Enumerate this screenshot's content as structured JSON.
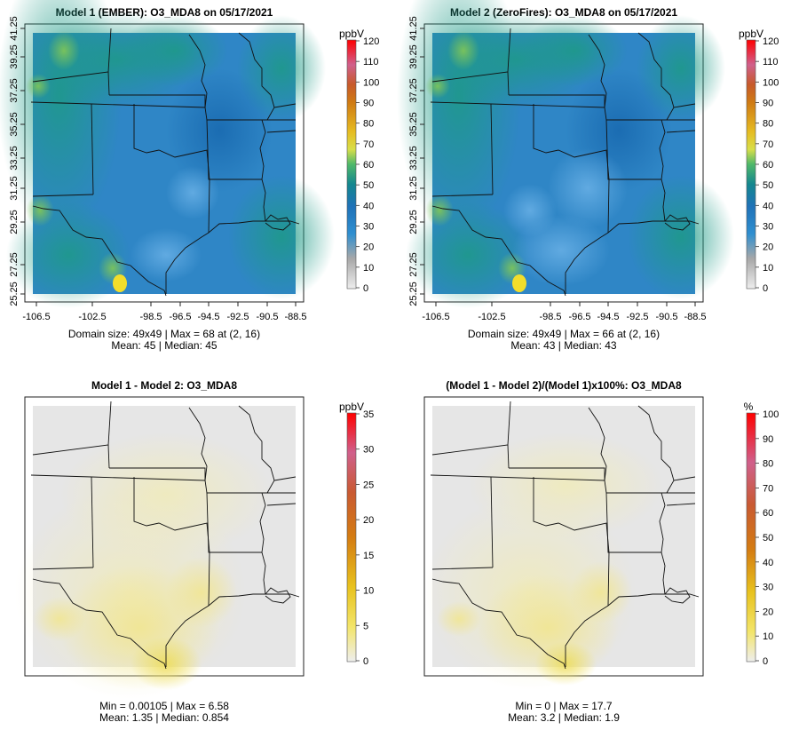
{
  "chart_data": [
    {
      "type": "heatmap",
      "title": "Model 1 (EMBER): O3_MDA8 on 05/17/2021",
      "x_ticks": [
        "-106.5",
        "-102.5",
        "-98.5",
        "-96.5",
        "-94.5",
        "-92.5",
        "-90.5",
        "-88.5"
      ],
      "y_ticks": [
        "25.25",
        "27.25",
        "29.25",
        "31.25",
        "33.25",
        "35.25",
        "37.25",
        "39.25",
        "41.25"
      ],
      "colorbar": {
        "unit": "ppbV",
        "ticks": [
          "0",
          "10",
          "20",
          "30",
          "40",
          "50",
          "60",
          "70",
          "80",
          "90",
          "100",
          "110",
          "120"
        ],
        "min": 0,
        "max": 120
      },
      "stats": [
        "Domain size: 49x49 | Max = 68 at (2, 16)",
        "Mean: 45 |  Median: 45"
      ],
      "values": {
        "mean": 45,
        "median": 45,
        "max": 68
      }
    },
    {
      "type": "heatmap",
      "title": "Model 2 (ZeroFires): O3_MDA8 on 05/17/2021",
      "x_ticks": [
        "-106.5",
        "-102.5",
        "-98.5",
        "-96.5",
        "-94.5",
        "-92.5",
        "-90.5",
        "-88.5"
      ],
      "y_ticks": [
        "25.25",
        "27.25",
        "29.25",
        "31.25",
        "33.25",
        "35.25",
        "37.25",
        "39.25",
        "41.25"
      ],
      "colorbar": {
        "unit": "ppbV",
        "ticks": [
          "0",
          "10",
          "20",
          "30",
          "40",
          "50",
          "60",
          "70",
          "80",
          "90",
          "100",
          "110",
          "120"
        ],
        "min": 0,
        "max": 120
      },
      "stats": [
        "Domain size: 49x49 | Max = 66 at (2, 16)",
        "Mean: 43 |  Median: 43"
      ],
      "values": {
        "mean": 43,
        "median": 43,
        "max": 66
      }
    },
    {
      "type": "heatmap",
      "title": "Model 1 - Model 2: O3_MDA8",
      "colorbar": {
        "unit": "ppbV",
        "ticks": [
          "0",
          "5",
          "10",
          "15",
          "20",
          "25",
          "30",
          "35"
        ],
        "min": 0,
        "max": 35
      },
      "stats": [
        "Min = 0.00105 | Max = 6.58",
        "Mean: 1.35 |  Median: 0.854"
      ],
      "values": {
        "min": 0.00105,
        "max": 6.58,
        "mean": 1.35,
        "median": 0.854
      }
    },
    {
      "type": "heatmap",
      "title": "(Model 1 - Model 2)/(Model 1)x100%: O3_MDA8",
      "colorbar": {
        "unit": "%",
        "ticks": [
          "0",
          "10",
          "20",
          "30",
          "40",
          "50",
          "60",
          "70",
          "80",
          "90",
          "100"
        ],
        "min": 0,
        "max": 100
      },
      "stats": [
        "Min = 0 | Max = 17.7",
        "Mean: 3.2 |  Median: 1.9"
      ],
      "values": {
        "min": 0,
        "max": 17.7,
        "mean": 3.2,
        "median": 1.9
      }
    }
  ]
}
